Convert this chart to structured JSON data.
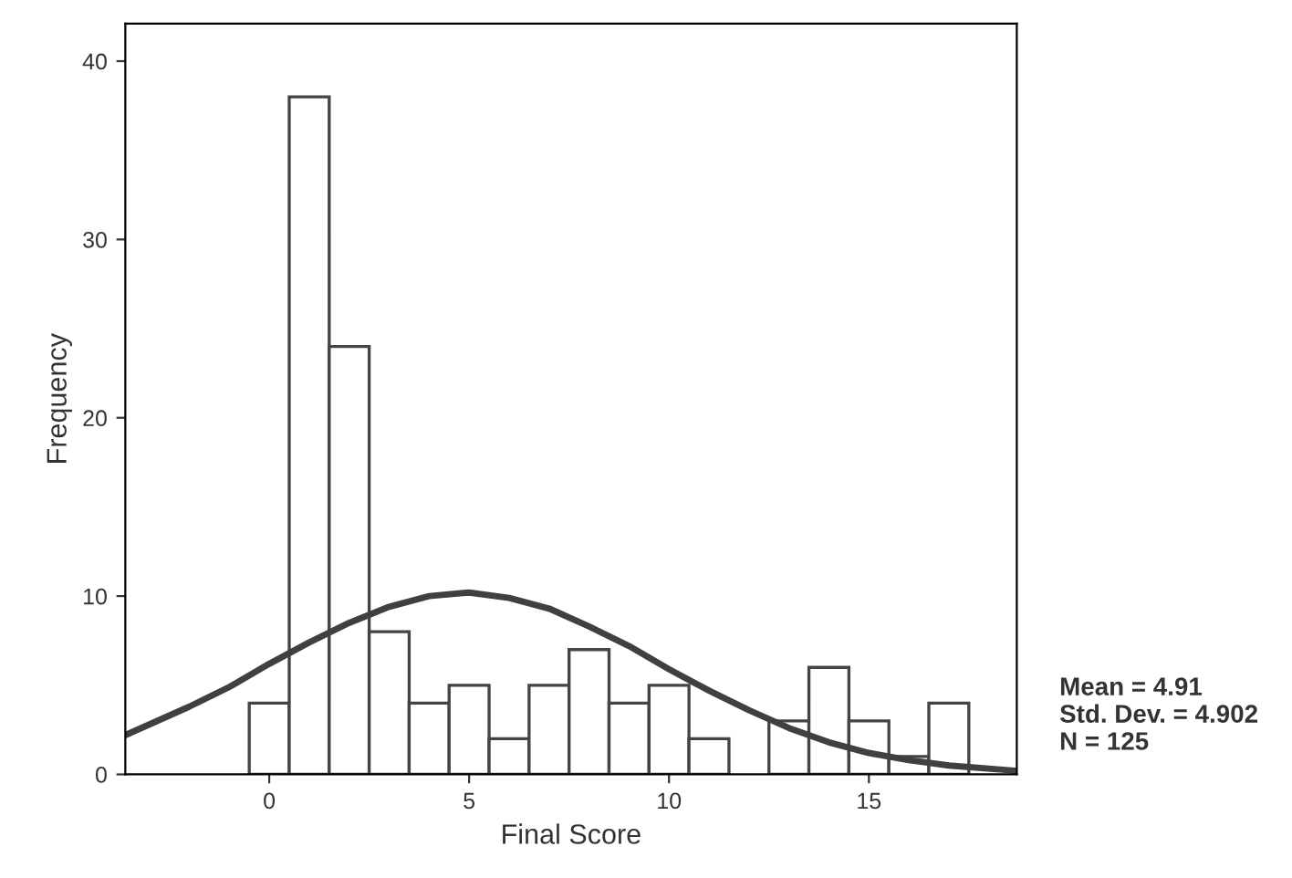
{
  "chart_data": {
    "type": "histogram",
    "xlabel": "Final Score",
    "ylabel": "Frequency",
    "bins": [
      -0.5,
      0.5,
      1.5,
      2.5,
      3.5,
      4.5,
      5.5,
      6.5,
      7.5,
      8.5,
      9.5,
      10.5,
      11.5,
      12.5,
      13.5,
      14.5,
      15.5,
      16.5,
      17.5
    ],
    "values": [
      4,
      38,
      24,
      8,
      4,
      5,
      2,
      5,
      7,
      4,
      5,
      2,
      0,
      3,
      6,
      3,
      1,
      4
    ],
    "color": "#ffffff",
    "series": [
      {
        "type": "line",
        "color": "#404040",
        "x": [
          -3.6,
          -2,
          -1,
          0,
          1,
          2,
          3,
          4,
          5,
          6,
          7,
          8,
          9,
          10,
          11,
          12,
          13,
          14,
          15,
          16,
          17,
          18.7
        ],
        "values": [
          2.2,
          3.8,
          4.9,
          6.2,
          7.4,
          8.5,
          9.4,
          10.0,
          10.2,
          9.9,
          9.3,
          8.3,
          7.2,
          5.9,
          4.7,
          3.6,
          2.6,
          1.8,
          1.2,
          0.8,
          0.5,
          0.2
        ]
      }
    ],
    "xlim": [
      -3.6,
      18.7
    ],
    "ylim": [
      0,
      42.1
    ],
    "xticks": [
      0,
      5,
      10,
      15
    ],
    "yticks": [
      0,
      10,
      20,
      30,
      40
    ],
    "grid": false,
    "legend": false,
    "annotations": [
      "Mean = 4.91\nStd. Dev. = 4.902\nN = 125"
    ]
  }
}
